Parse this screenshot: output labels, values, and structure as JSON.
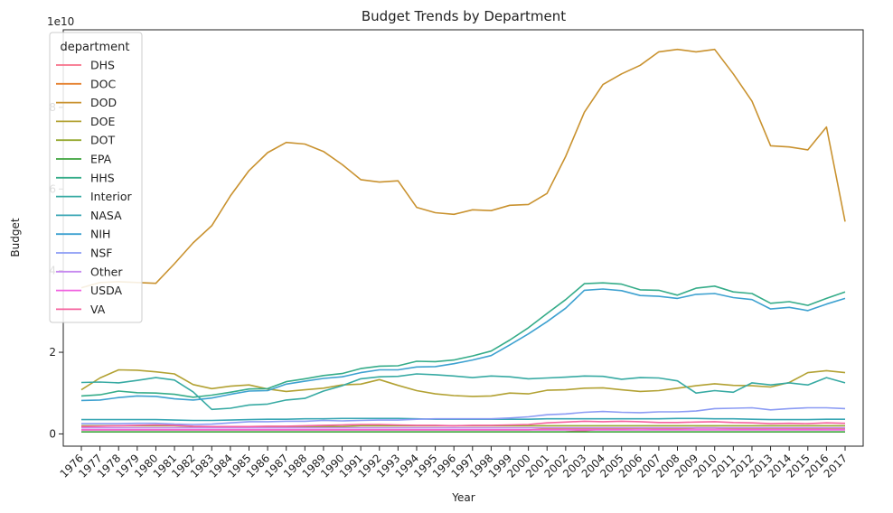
{
  "chart_data": {
    "type": "line",
    "title": "Budget Trends by Department",
    "xlabel": "Year",
    "ylabel": "Budget",
    "y_offset_text": "1e10",
    "y_scale_divisor": 10000000000,
    "ylim": [
      -0.3,
      9.9
    ],
    "yticks": [
      0,
      2,
      4,
      6,
      8
    ],
    "legend": {
      "title": "department",
      "placement": "top-left"
    },
    "grid": false,
    "x": [
      "1976",
      "1977",
      "1978",
      "1979",
      "1980",
      "1981",
      "1982",
      "1983",
      "1984",
      "1985",
      "1986",
      "1987",
      "1988",
      "1989",
      "1990",
      "1991",
      "1992",
      "1993",
      "1994",
      "1995",
      "1996",
      "1997",
      "1998",
      "1999",
      "2000",
      "2001",
      "2002",
      "2003",
      "2004",
      "2005",
      "2006",
      "2007",
      "2008",
      "2009",
      "2010",
      "2011",
      "2012",
      "2013",
      "2014",
      "2015",
      "2016",
      "2017"
    ],
    "series": [
      {
        "name": "DHS",
        "color": "#f77189",
        "values": [
          null,
          null,
          null,
          null,
          null,
          null,
          null,
          null,
          null,
          null,
          null,
          null,
          null,
          null,
          null,
          null,
          null,
          null,
          null,
          null,
          null,
          null,
          null,
          null,
          null,
          null,
          0.05,
          0.08,
          0.12,
          0.13,
          0.14,
          0.12,
          0.13,
          0.14,
          0.14,
          0.13,
          0.12,
          0.13,
          0.13,
          0.12,
          0.13,
          0.13
        ]
      },
      {
        "name": "DOC",
        "color": "#e5812f",
        "values": [
          0.1,
          0.1,
          0.1,
          0.1,
          0.1,
          0.1,
          0.1,
          0.1,
          0.1,
          0.1,
          0.1,
          0.1,
          0.1,
          0.1,
          0.1,
          0.1,
          0.1,
          0.1,
          0.1,
          0.1,
          0.1,
          0.1,
          0.1,
          0.1,
          0.1,
          0.12,
          0.13,
          0.13,
          0.13,
          0.13,
          0.14,
          0.14,
          0.13,
          0.15,
          0.15,
          0.14,
          0.14,
          0.14,
          0.14,
          0.14,
          0.14,
          0.14
        ]
      },
      {
        "name": "DOD",
        "color": "#c9922f",
        "values": [
          3.58,
          3.71,
          3.73,
          3.71,
          3.69,
          4.17,
          4.68,
          5.1,
          5.83,
          6.45,
          6.89,
          7.14,
          7.1,
          6.92,
          6.6,
          6.23,
          6.17,
          6.2,
          5.55,
          5.42,
          5.38,
          5.49,
          5.47,
          5.6,
          5.62,
          5.89,
          6.8,
          7.88,
          8.56,
          8.82,
          9.03,
          9.36,
          9.42,
          9.36,
          9.42,
          8.82,
          8.15,
          7.06,
          7.03,
          6.96,
          7.52,
          5.2
        ]
      },
      {
        "name": "DOE",
        "color": "#b2a132",
        "values": [
          1.08,
          1.37,
          1.57,
          1.56,
          1.52,
          1.47,
          1.21,
          1.11,
          1.17,
          1.2,
          1.1,
          1.04,
          1.08,
          1.12,
          1.2,
          1.22,
          1.33,
          1.19,
          1.06,
          0.98,
          0.94,
          0.92,
          0.93,
          1.0,
          0.98,
          1.07,
          1.08,
          1.12,
          1.13,
          1.08,
          1.04,
          1.06,
          1.12,
          1.18,
          1.23,
          1.19,
          1.18,
          1.15,
          1.26,
          1.5,
          1.55,
          1.5
        ]
      },
      {
        "name": "DOT",
        "color": "#96a931",
        "values": [
          0.2,
          0.2,
          0.2,
          0.2,
          0.2,
          0.2,
          0.18,
          0.18,
          0.18,
          0.18,
          0.18,
          0.18,
          0.18,
          0.18,
          0.18,
          0.2,
          0.2,
          0.2,
          0.2,
          0.2,
          0.2,
          0.2,
          0.2,
          0.2,
          0.2,
          0.2,
          0.2,
          0.2,
          0.2,
          0.2,
          0.2,
          0.2,
          0.2,
          0.2,
          0.2,
          0.2,
          0.2,
          0.2,
          0.2,
          0.2,
          0.2,
          0.2
        ]
      },
      {
        "name": "EPA",
        "color": "#3ba33b",
        "values": [
          0.05,
          0.05,
          0.05,
          0.05,
          0.05,
          0.05,
          0.05,
          0.05,
          0.05,
          0.05,
          0.05,
          0.05,
          0.05,
          0.05,
          0.05,
          0.05,
          0.05,
          0.05,
          0.05,
          0.05,
          0.05,
          0.05,
          0.05,
          0.05,
          0.05,
          0.05,
          0.05,
          0.05,
          0.05,
          0.05,
          0.05,
          0.05,
          0.05,
          0.05,
          0.05,
          0.05,
          0.05,
          0.05,
          0.05,
          0.05,
          0.05,
          0.05
        ]
      },
      {
        "name": "HHS",
        "color": "#35ac89",
        "values": [
          0.93,
          0.96,
          1.05,
          1.01,
          1.0,
          0.97,
          0.9,
          0.95,
          1.02,
          1.1,
          1.11,
          1.28,
          1.35,
          1.43,
          1.48,
          1.6,
          1.66,
          1.67,
          1.78,
          1.77,
          1.81,
          1.91,
          2.03,
          2.3,
          2.6,
          2.95,
          3.29,
          3.68,
          3.7,
          3.67,
          3.53,
          3.52,
          3.4,
          3.57,
          3.62,
          3.48,
          3.44,
          3.2,
          3.24,
          3.15,
          3.32,
          3.48
        ]
      },
      {
        "name": "Interior",
        "color": "#37aaa3",
        "values": [
          1.26,
          1.27,
          1.25,
          1.31,
          1.38,
          1.32,
          1.03,
          0.6,
          0.63,
          0.71,
          0.73,
          0.83,
          0.87,
          1.05,
          1.18,
          1.35,
          1.4,
          1.41,
          1.47,
          1.45,
          1.42,
          1.38,
          1.42,
          1.4,
          1.35,
          1.37,
          1.39,
          1.42,
          1.41,
          1.34,
          1.38,
          1.37,
          1.3,
          1.0,
          1.06,
          1.02,
          1.25,
          1.2,
          1.25,
          1.2,
          1.38,
          1.25
        ]
      },
      {
        "name": "NASA",
        "color": "#39a6b4",
        "values": [
          0.35,
          0.35,
          0.35,
          0.35,
          0.35,
          0.34,
          0.33,
          0.33,
          0.34,
          0.35,
          0.36,
          0.36,
          0.37,
          0.37,
          0.38,
          0.38,
          0.38,
          0.38,
          0.37,
          0.36,
          0.36,
          0.36,
          0.36,
          0.36,
          0.36,
          0.37,
          0.37,
          0.37,
          0.37,
          0.37,
          0.37,
          0.37,
          0.38,
          0.38,
          0.37,
          0.37,
          0.36,
          0.35,
          0.35,
          0.35,
          0.36,
          0.36
        ]
      },
      {
        "name": "NIH",
        "color": "#3da1d0",
        "values": [
          0.82,
          0.83,
          0.89,
          0.93,
          0.92,
          0.86,
          0.83,
          0.88,
          0.97,
          1.05,
          1.06,
          1.22,
          1.29,
          1.36,
          1.4,
          1.5,
          1.57,
          1.57,
          1.64,
          1.65,
          1.72,
          1.81,
          1.92,
          2.18,
          2.45,
          2.75,
          3.08,
          3.52,
          3.55,
          3.51,
          3.39,
          3.37,
          3.32,
          3.42,
          3.44,
          3.34,
          3.29,
          3.06,
          3.1,
          3.02,
          3.18,
          3.32
        ]
      },
      {
        "name": "NSF",
        "color": "#8b9bf4",
        "values": [
          0.25,
          0.25,
          0.25,
          0.26,
          0.26,
          0.24,
          0.23,
          0.24,
          0.27,
          0.3,
          0.3,
          0.31,
          0.31,
          0.33,
          0.32,
          0.33,
          0.34,
          0.34,
          0.36,
          0.37,
          0.37,
          0.37,
          0.37,
          0.39,
          0.42,
          0.47,
          0.49,
          0.53,
          0.55,
          0.53,
          0.52,
          0.54,
          0.54,
          0.56,
          0.62,
          0.63,
          0.64,
          0.59,
          0.62,
          0.64,
          0.64,
          0.62
        ]
      },
      {
        "name": "Other",
        "color": "#c68aef",
        "values": [
          0.15,
          0.15,
          0.15,
          0.15,
          0.15,
          0.15,
          0.15,
          0.15,
          0.15,
          0.15,
          0.15,
          0.15,
          0.15,
          0.15,
          0.15,
          0.15,
          0.15,
          0.15,
          0.15,
          0.15,
          0.15,
          0.15,
          0.15,
          0.15,
          0.15,
          0.15,
          0.15,
          0.15,
          0.15,
          0.15,
          0.15,
          0.15,
          0.15,
          0.15,
          0.15,
          0.15,
          0.15,
          0.15,
          0.15,
          0.15,
          0.15,
          0.15
        ]
      },
      {
        "name": "USDA",
        "color": "#f060e0",
        "values": [
          0.1,
          0.1,
          0.1,
          0.1,
          0.1,
          0.1,
          0.1,
          0.1,
          0.1,
          0.1,
          0.1,
          0.1,
          0.1,
          0.1,
          0.1,
          0.1,
          0.1,
          0.1,
          0.1,
          0.1,
          0.1,
          0.1,
          0.1,
          0.1,
          0.1,
          0.1,
          0.1,
          0.1,
          0.1,
          0.1,
          0.1,
          0.1,
          0.1,
          0.1,
          0.1,
          0.1,
          0.1,
          0.1,
          0.1,
          0.1,
          0.1,
          0.1
        ]
      },
      {
        "name": "VA",
        "color": "#f5609e",
        "values": [
          0.18,
          0.19,
          0.2,
          0.21,
          0.22,
          0.21,
          0.19,
          0.18,
          0.18,
          0.18,
          0.19,
          0.19,
          0.2,
          0.21,
          0.22,
          0.23,
          0.23,
          0.22,
          0.21,
          0.21,
          0.2,
          0.21,
          0.21,
          0.22,
          0.23,
          0.27,
          0.29,
          0.31,
          0.3,
          0.31,
          0.3,
          0.28,
          0.28,
          0.29,
          0.3,
          0.28,
          0.27,
          0.25,
          0.26,
          0.25,
          0.27,
          0.26
        ]
      }
    ]
  }
}
